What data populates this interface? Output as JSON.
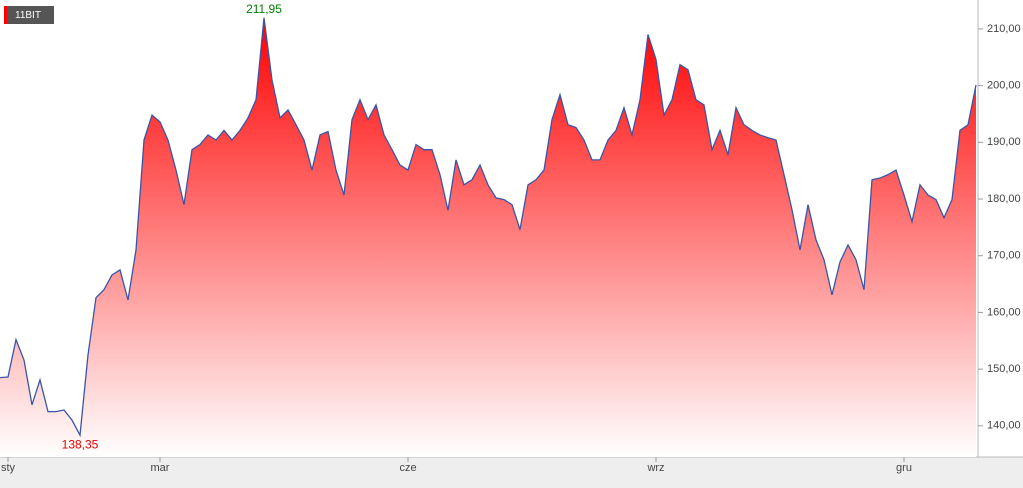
{
  "chart_data": {
    "type": "area",
    "series": [
      {
        "name": "11BIT",
        "color": "#3a55a8",
        "fill": "#ff0000",
        "values": [
          148.5,
          148.6,
          155.2,
          151.6,
          143.7,
          148.1,
          142.5,
          142.5,
          142.8,
          141,
          138.35,
          152.5,
          162.6,
          164,
          166.6,
          167.5,
          162.2,
          171,
          190.4,
          194.8,
          193.6,
          190.4,
          185.1,
          179,
          188.7,
          189.6,
          191.3,
          190.4,
          192.1,
          190.4,
          192.1,
          194.3,
          197.5,
          211.95,
          201,
          194.3,
          195.7,
          193.1,
          190.4,
          185.1,
          191.3,
          191.9,
          185.1,
          180.7,
          194,
          197.5,
          194,
          196.6,
          191.3,
          188.7,
          186,
          185.1,
          189.6,
          188.7,
          188.7,
          184.3,
          178,
          186.9,
          182.5,
          183.4,
          186,
          182.5,
          180.2,
          179.9,
          179,
          174.6,
          182.5,
          183.4,
          185.1,
          194,
          198.4,
          193.1,
          192.6,
          190.4,
          186.9,
          186.9,
          190.4,
          192.1,
          196.1,
          191.3,
          197.5,
          209,
          204.6,
          194.8,
          197.5,
          203.7,
          202.8,
          197.5,
          196.6,
          188.7,
          192.1,
          187.8,
          196.1,
          193.1,
          192.1,
          191.3,
          190.8,
          190.4,
          184.3,
          178.1,
          171,
          179,
          172.8,
          169.3,
          163.1,
          168.9,
          171.9,
          169.3,
          164,
          183.4,
          183.7,
          184.3,
          185.1,
          180.7,
          176,
          182.5,
          180.7,
          179.9,
          176.7,
          179.9,
          192.1,
          193.1,
          200.1
        ],
        "value_labels": [
          null,
          null,
          null,
          null,
          null,
          null,
          null,
          null,
          null,
          null,
          "138,35",
          null,
          null,
          null,
          null,
          null,
          null,
          null,
          null,
          null,
          null,
          null,
          null,
          null,
          null,
          null,
          null,
          null,
          null,
          null,
          null,
          null,
          null,
          "211,95",
          null,
          null,
          null,
          null,
          null,
          null,
          null,
          null,
          null,
          null,
          null,
          null,
          null,
          null,
          null,
          null,
          null,
          null,
          null,
          null,
          null,
          null,
          null,
          null,
          null,
          null,
          null,
          null,
          null,
          null,
          null,
          null,
          null,
          null,
          null,
          null,
          null,
          null,
          null,
          null,
          null,
          null,
          null,
          null,
          null,
          null,
          null,
          null,
          null,
          null,
          null,
          null,
          null,
          null,
          null,
          null,
          null,
          null,
          null,
          null,
          null,
          null,
          null,
          null,
          null,
          null,
          null,
          null,
          null,
          null,
          null,
          null,
          null,
          null,
          null,
          null,
          null,
          null,
          null,
          null,
          null,
          null,
          null,
          null,
          null,
          null,
          null,
          null,
          null
        ]
      }
    ],
    "categories": [
      null,
      "sty",
      null,
      null,
      null,
      null,
      null,
      null,
      null,
      null,
      null,
      null,
      null,
      null,
      null,
      null,
      null,
      null,
      null,
      null,
      "mar",
      null,
      null,
      null,
      null,
      null,
      null,
      null,
      null,
      null,
      null,
      null,
      null,
      null,
      null,
      null,
      null,
      null,
      null,
      null,
      null,
      null,
      null,
      null,
      null,
      null,
      null,
      null,
      null,
      null,
      null,
      "cze",
      null,
      null,
      null,
      null,
      null,
      null,
      null,
      null,
      null,
      null,
      null,
      null,
      null,
      null,
      null,
      null,
      null,
      null,
      null,
      null,
      null,
      null,
      null,
      null,
      null,
      null,
      null,
      null,
      null,
      null,
      "wrz",
      null,
      null,
      null,
      null,
      null,
      null,
      null,
      null,
      null,
      null,
      null,
      null,
      null,
      null,
      null,
      null,
      null,
      null,
      null,
      null,
      null,
      null,
      null,
      null,
      null,
      null,
      null,
      null,
      null,
      null,
      "gru",
      null,
      null,
      null,
      null,
      null,
      null,
      null,
      null,
      null
    ],
    "ylim": [
      134.5,
      215.1
    ],
    "yticks": [
      {
        "value": 140,
        "label": "140,00"
      },
      {
        "value": 150,
        "label": "150,00"
      },
      {
        "value": 160,
        "label": "160,00"
      },
      {
        "value": 170,
        "label": "170,00"
      },
      {
        "value": 180,
        "label": "180,00"
      },
      {
        "value": 190,
        "label": "190,00"
      },
      {
        "value": 200,
        "label": "200,00"
      },
      {
        "value": 210,
        "label": "210,00"
      }
    ],
    "y_axis_side": "right",
    "grid": false
  }
}
